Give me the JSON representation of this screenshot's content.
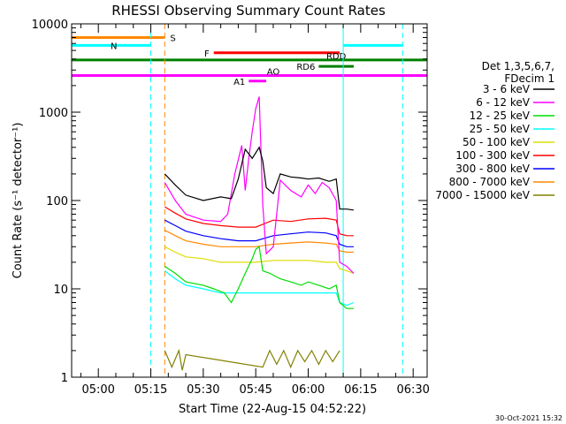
{
  "chart_data": {
    "type": "line",
    "title": "RHESSI Observing Summary Count Rates",
    "xlabel": "Start Time (22-Aug-15 04:52:22)",
    "ylabel": "Count Rate (s⁻¹ detector⁻¹)",
    "xlim": [
      "04:52:22",
      "06:34:00"
    ],
    "ylim": [
      1,
      10000
    ],
    "yscale": "log",
    "x_ticks": [
      "05:00",
      "05:15",
      "05:30",
      "05:45",
      "06:00",
      "06:15",
      "06:30"
    ],
    "y_ticks": [
      1,
      10,
      100,
      1000,
      10000
    ],
    "y_tick_labels": [
      "1",
      "10",
      "100",
      "1000",
      "10000"
    ],
    "legend": {
      "position": "right",
      "header": [
        "Det 1,3,5,6,7,",
        "FDecim 1"
      ]
    },
    "series": [
      {
        "name": "3 - 6 keV",
        "color": "#000000",
        "points": [
          [
            "05:19",
            200
          ],
          [
            "05:22",
            150
          ],
          [
            "05:25",
            115
          ],
          [
            "05:30",
            100
          ],
          [
            "05:35",
            110
          ],
          [
            "05:38",
            105
          ],
          [
            "05:40",
            175
          ],
          [
            "05:42",
            380
          ],
          [
            "05:44",
            300
          ],
          [
            "05:46",
            400
          ],
          [
            "05:47",
            280
          ],
          [
            "05:48",
            140
          ],
          [
            "05:50",
            120
          ],
          [
            "05:52",
            200
          ],
          [
            "05:55",
            185
          ],
          [
            "05:58",
            180
          ],
          [
            "06:00",
            175
          ],
          [
            "06:03",
            180
          ],
          [
            "06:06",
            165
          ],
          [
            "06:08",
            175
          ],
          [
            "06:09",
            80
          ],
          [
            "06:11",
            80
          ],
          [
            "06:13",
            78
          ]
        ]
      },
      {
        "name": "6 - 12 keV",
        "color": "#ff00ff",
        "points": [
          [
            "05:19",
            160
          ],
          [
            "05:22",
            100
          ],
          [
            "05:25",
            70
          ],
          [
            "05:30",
            60
          ],
          [
            "05:35",
            58
          ],
          [
            "05:37",
            70
          ],
          [
            "05:39",
            200
          ],
          [
            "05:41",
            420
          ],
          [
            "05:42",
            130
          ],
          [
            "05:43",
            300
          ],
          [
            "05:44",
            600
          ],
          [
            "05:45",
            1100
          ],
          [
            "05:46",
            1500
          ],
          [
            "05:47",
            90
          ],
          [
            "05:48",
            25
          ],
          [
            "05:50",
            30
          ],
          [
            "05:52",
            170
          ],
          [
            "05:55",
            130
          ],
          [
            "05:58",
            110
          ],
          [
            "06:00",
            150
          ],
          [
            "06:02",
            120
          ],
          [
            "06:04",
            160
          ],
          [
            "06:06",
            140
          ],
          [
            "06:08",
            100
          ],
          [
            "06:09",
            20
          ],
          [
            "06:11",
            18
          ],
          [
            "06:13",
            15
          ]
        ]
      },
      {
        "name": "12 - 25 keV",
        "color": "#00dd00",
        "points": [
          [
            "05:19",
            18
          ],
          [
            "05:22",
            15
          ],
          [
            "05:25",
            12
          ],
          [
            "05:30",
            11
          ],
          [
            "05:33",
            10
          ],
          [
            "05:36",
            9
          ],
          [
            "05:38",
            7
          ],
          [
            "05:40",
            10
          ],
          [
            "05:42",
            15
          ],
          [
            "05:44",
            22
          ],
          [
            "05:45",
            28
          ],
          [
            "05:46",
            30
          ],
          [
            "05:47",
            16
          ],
          [
            "05:49",
            15
          ],
          [
            "05:52",
            13
          ],
          [
            "05:55",
            12
          ],
          [
            "05:58",
            11
          ],
          [
            "06:00",
            12
          ],
          [
            "06:03",
            11
          ],
          [
            "06:06",
            10
          ],
          [
            "06:08",
            11
          ],
          [
            "06:09",
            7
          ],
          [
            "06:11",
            6
          ],
          [
            "06:13",
            6
          ]
        ]
      },
      {
        "name": "25 - 50 keV",
        "color": "#00ffff",
        "points": [
          [
            "05:19",
            16
          ],
          [
            "05:22",
            13
          ],
          [
            "05:25",
            11
          ],
          [
            "05:30",
            10
          ],
          [
            "05:35",
            9
          ],
          [
            "05:40",
            9
          ],
          [
            "05:45",
            9
          ],
          [
            "05:50",
            9
          ],
          [
            "05:55",
            9
          ],
          [
            "06:00",
            9
          ],
          [
            "06:05",
            9
          ],
          [
            "06:08",
            9
          ],
          [
            "06:09",
            7
          ],
          [
            "06:11",
            6.5
          ],
          [
            "06:13",
            7
          ]
        ]
      },
      {
        "name": "50 - 100 keV",
        "color": "#dddd00",
        "points": [
          [
            "05:19",
            30
          ],
          [
            "05:22",
            26
          ],
          [
            "05:25",
            23
          ],
          [
            "05:30",
            22
          ],
          [
            "05:35",
            20
          ],
          [
            "05:40",
            20
          ],
          [
            "05:45",
            20
          ],
          [
            "05:50",
            21
          ],
          [
            "05:55",
            21
          ],
          [
            "06:00",
            21
          ],
          [
            "06:05",
            20
          ],
          [
            "06:08",
            20
          ],
          [
            "06:09",
            17
          ],
          [
            "06:11",
            16
          ],
          [
            "06:13",
            15
          ]
        ]
      },
      {
        "name": "100 - 300 keV",
        "color": "#ff0000",
        "points": [
          [
            "05:19",
            85
          ],
          [
            "05:22",
            72
          ],
          [
            "05:25",
            62
          ],
          [
            "05:30",
            55
          ],
          [
            "05:35",
            52
          ],
          [
            "05:40",
            50
          ],
          [
            "05:45",
            50
          ],
          [
            "05:50",
            60
          ],
          [
            "05:55",
            58
          ],
          [
            "06:00",
            62
          ],
          [
            "06:05",
            63
          ],
          [
            "06:08",
            60
          ],
          [
            "06:09",
            42
          ],
          [
            "06:11",
            40
          ],
          [
            "06:13",
            40
          ]
        ]
      },
      {
        "name": "300 - 800 keV",
        "color": "#0000ff",
        "points": [
          [
            "05:19",
            60
          ],
          [
            "05:22",
            52
          ],
          [
            "05:25",
            45
          ],
          [
            "05:30",
            40
          ],
          [
            "05:35",
            37
          ],
          [
            "05:40",
            35
          ],
          [
            "05:45",
            35
          ],
          [
            "05:50",
            40
          ],
          [
            "05:55",
            42
          ],
          [
            "06:00",
            44
          ],
          [
            "06:05",
            43
          ],
          [
            "06:08",
            40
          ],
          [
            "06:09",
            32
          ],
          [
            "06:11",
            30
          ],
          [
            "06:13",
            30
          ]
        ]
      },
      {
        "name": "800 - 7000 keV",
        "color": "#ff8800",
        "points": [
          [
            "05:19",
            46
          ],
          [
            "05:22",
            40
          ],
          [
            "05:25",
            35
          ],
          [
            "05:30",
            32
          ],
          [
            "05:35",
            30
          ],
          [
            "05:40",
            30
          ],
          [
            "05:45",
            30
          ],
          [
            "05:50",
            32
          ],
          [
            "05:55",
            33
          ],
          [
            "06:00",
            34
          ],
          [
            "06:05",
            33
          ],
          [
            "06:08",
            32
          ],
          [
            "06:09",
            27
          ],
          [
            "06:11",
            26
          ],
          [
            "06:13",
            26
          ]
        ]
      },
      {
        "name": "7000 - 15000 keV",
        "color": "#808000",
        "points": [
          [
            "05:19",
            2
          ],
          [
            "05:21",
            1.3
          ],
          [
            "05:23",
            2
          ],
          [
            "05:24",
            1.2
          ],
          [
            "05:25",
            1.8
          ],
          [
            "05:47",
            1.3
          ],
          [
            "05:49",
            2
          ],
          [
            "05:51",
            1.4
          ],
          [
            "05:53",
            2
          ],
          [
            "05:55",
            1.3
          ],
          [
            "05:57",
            2
          ],
          [
            "05:59",
            1.5
          ],
          [
            "06:01",
            2
          ],
          [
            "06:03",
            1.4
          ],
          [
            "06:05",
            2
          ],
          [
            "06:07",
            1.5
          ],
          [
            "06:09",
            2
          ]
        ]
      }
    ],
    "state_bars": [
      {
        "label": "S",
        "color": "#ff8800",
        "start": "04:52:22",
        "end": "05:19",
        "level": 7000
      },
      {
        "label": "N",
        "color": "#00ffff",
        "start": "04:52:22",
        "end": "05:15",
        "level": 5700
      },
      {
        "label": "",
        "color": "#00ffff",
        "start": "06:10",
        "end": "06:27",
        "level": 5700
      },
      {
        "label": "F",
        "color": "#ff0000",
        "start": "05:33",
        "end": "06:09",
        "level": 4700
      },
      {
        "label": "RDD",
        "color": "#008000",
        "start": "04:52:22",
        "end": "06:34",
        "level": 3900
      },
      {
        "label": "RD6",
        "color": "#008000",
        "start": "06:03",
        "end": "06:13",
        "level": 3300
      },
      {
        "label": "AO",
        "color": "#ff00ff",
        "start": "04:52:22",
        "end": "06:34",
        "level": 2600
      },
      {
        "label": "A1",
        "color": "#ff00ff",
        "start": "05:43",
        "end": "05:48",
        "level": 2250
      }
    ],
    "vertical_lines": [
      {
        "time": "05:15",
        "color": "#00ffff",
        "dashed": true
      },
      {
        "time": "05:19",
        "color": "#ff8800",
        "dashed": true
      },
      {
        "time": "06:10",
        "color": "#00ffff",
        "dashed": false
      },
      {
        "time": "06:27",
        "color": "#00ffff",
        "dashed": true
      }
    ]
  },
  "footer": {
    "timestamp": "30-Oct-2021 15:32"
  }
}
